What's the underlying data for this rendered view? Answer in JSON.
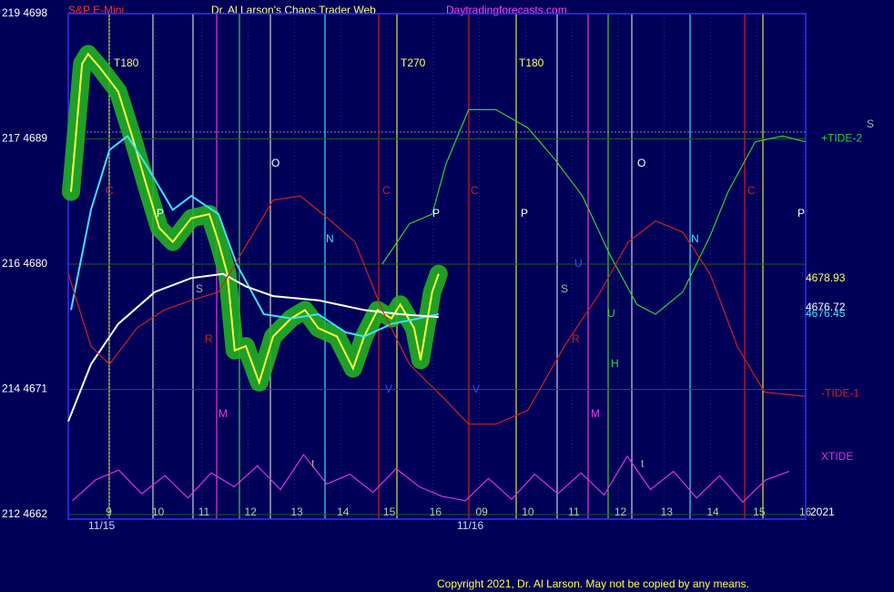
{
  "chart_data": {
    "type": "line",
    "subtitle": "S&P E-Mini",
    "title": "Dr. Al Larson's Chaos Trader Web",
    "source": "Daytradingforecasts.com",
    "copyright": "Copyright 2021, Dr. Al Larson. May not be copied by any means.",
    "dates": [
      "11/15",
      "11/16"
    ],
    "year": "2021",
    "xlim": [
      8.11,
      24.06
    ],
    "xticks": [
      9,
      10,
      11,
      12,
      13,
      14,
      15,
      16,
      {
        "value": 17,
        "label": "09"
      },
      {
        "value": 18,
        "label": "10"
      },
      {
        "value": 19,
        "label": "11"
      },
      {
        "value": 20,
        "label": "12"
      },
      {
        "value": 21,
        "label": "13"
      },
      {
        "value": 22,
        "label": "14"
      },
      {
        "value": 23,
        "label": "15"
      },
      {
        "value": 24,
        "label": "16"
      }
    ],
    "ylim": [
      4662,
      4698
    ],
    "yticks": [
      {
        "value": 4662,
        "label": "212 4662"
      },
      {
        "value": 4671,
        "label": "214 4671"
      },
      {
        "value": 4680,
        "label": "216 4680"
      },
      {
        "value": 4689,
        "label": "217 4689"
      },
      {
        "value": 4698,
        "label": "219 4698"
      }
    ],
    "grid": true,
    "series": [
      {
        "color": "#ffff40",
        "x": [
          8.17,
          8.41,
          8.54,
          8.8,
          9.19,
          9.49,
          9.78,
          10.08,
          10.37,
          10.77,
          11.16,
          11.36,
          11.55,
          11.71,
          11.95,
          12.24,
          12.54,
          12.93,
          13.23,
          13.52,
          13.92,
          14.27,
          14.51,
          14.8,
          15.1,
          15.29,
          15.59,
          15.73,
          15.98,
          16.12
        ],
        "values": [
          4685.2,
          4694.4,
          4695.1,
          4694.1,
          4692.4,
          4689.2,
          4685.9,
          4682.6,
          4681.6,
          4683.3,
          4683.6,
          4681.6,
          4679.3,
          4673.8,
          4674.1,
          4671.5,
          4674.8,
          4676.1,
          4676.7,
          4675.4,
          4674.8,
          4672.5,
          4674.8,
          4676.7,
          4676.1,
          4677.1,
          4675.4,
          4673.1,
          4678.0,
          4679.3
        ]
      },
      {
        "color": "#40e0ff",
        "x": [
          8.17,
          8.6,
          9.0,
          9.39,
          9.78,
          10.37,
          10.77,
          11.36,
          11.75,
          12.34,
          12.93,
          13.52,
          14.11,
          14.51,
          15.1,
          15.69,
          16.12
        ],
        "values": [
          4676.7,
          4683.9,
          4688.2,
          4689.2,
          4687.2,
          4683.9,
          4684.9,
          4683.6,
          4680.0,
          4676.4,
          4676.1,
          4676.4,
          4675.1,
          4674.8,
          4675.7,
          4676.1,
          4676.4
        ]
      },
      {
        "color": "#ffffff",
        "x": [
          8.11,
          8.6,
          9.19,
          9.98,
          10.77,
          11.46,
          11.95,
          12.54,
          13.52,
          14.51,
          15.29,
          16.12
        ],
        "values": [
          4668.7,
          4672.8,
          4675.7,
          4678.0,
          4679.0,
          4679.3,
          4678.4,
          4677.7,
          4677.4,
          4676.7,
          4676.4,
          4676.2
        ]
      },
      {
        "name": "+TIDE-2",
        "color": "#30d030",
        "x": [
          14.9,
          15.49,
          15.98,
          16.28,
          16.77,
          17.36,
          18.05,
          18.64,
          19.23,
          19.82,
          20.41,
          20.81,
          21.4,
          21.99,
          22.38,
          22.97,
          23.56,
          24.05
        ],
        "values": [
          4680.0,
          4682.9,
          4683.6,
          4687.2,
          4691.1,
          4691.1,
          4689.8,
          4687.5,
          4684.9,
          4680.7,
          4677.1,
          4676.4,
          4678.0,
          4682.0,
          4685.2,
          4688.8,
          4689.2,
          4688.8
        ]
      },
      {
        "name": "-TIDE-1",
        "color": "#d02020",
        "x": [
          8.11,
          8.6,
          9.0,
          9.59,
          10.18,
          10.77,
          11.36,
          11.95,
          12.54,
          13.13,
          13.72,
          14.31,
          14.9,
          15.49,
          16.28,
          16.77,
          17.36,
          18.05,
          18.84,
          19.62,
          20.22,
          20.81,
          21.4,
          21.99,
          22.58,
          23.17,
          24.05
        ],
        "values": [
          4679.3,
          4674.1,
          4672.8,
          4675.4,
          4676.7,
          4677.4,
          4678.0,
          4681.3,
          4684.6,
          4684.9,
          4683.3,
          4681.6,
          4676.7,
          4672.8,
          4670.2,
          4668.5,
          4668.5,
          4669.5,
          4674.1,
          4678.0,
          4681.6,
          4683.1,
          4682.3,
          4679.3,
          4674.1,
          4670.8,
          4670.5
        ]
      },
      {
        "name": "XTIDE",
        "color": "#e030e0",
        "x": [
          8.2,
          8.7,
          9.2,
          9.7,
          10.2,
          10.7,
          11.2,
          11.7,
          12.2,
          12.7,
          13.2,
          13.7,
          14.2,
          14.7,
          15.2,
          15.7,
          16.2,
          16.7,
          17.2,
          17.7,
          18.2,
          18.7,
          19.2,
          19.7,
          20.2,
          20.7,
          21.2,
          21.7,
          22.2,
          22.7,
          23.2,
          23.7
        ],
        "values": [
          4663.0,
          4664.5,
          4665.2,
          4663.5,
          4664.8,
          4663.2,
          4665.0,
          4664.0,
          4665.5,
          4663.8,
          4666.3,
          4664.2,
          4664.9,
          4663.6,
          4665.3,
          4664.0,
          4663.3,
          4663.0,
          4664.6,
          4663.1,
          4664.9,
          4663.5,
          4665.0,
          4663.4,
          4666.2,
          4663.8,
          4665.1,
          4663.2,
          4664.8,
          4662.9,
          4664.5,
          4665.1
        ]
      }
    ],
    "annotations": [
      "T180",
      "T270",
      "T180",
      "O",
      "O",
      "C",
      "C",
      "C",
      "C",
      "P",
      "P",
      "P",
      "P",
      "N",
      "N",
      "S",
      "S",
      "R",
      "R",
      "U",
      "U",
      "H",
      "M",
      "M",
      "V",
      "V",
      "t",
      "t",
      "4678.93",
      "4676.72",
      "4676.45",
      "S"
    ]
  }
}
